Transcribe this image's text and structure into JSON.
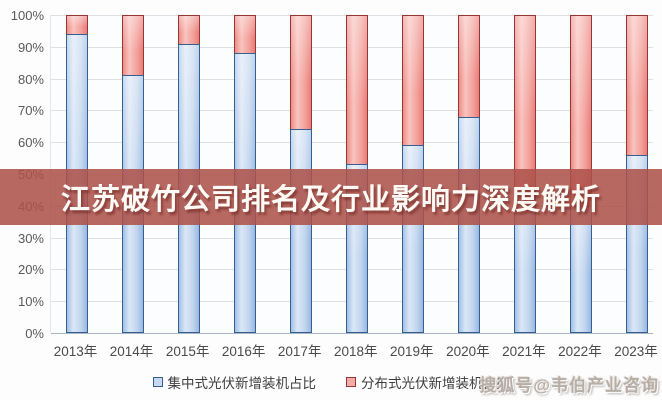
{
  "banner": {
    "title": "江苏破竹公司排名及行业影响力深度解析",
    "bg_color": "#ac524a",
    "text_color": "#fefaf5"
  },
  "watermark": {
    "text": "搜狐号@韦伯产业咨询"
  },
  "chart_data": {
    "type": "bar",
    "stacked": true,
    "unit": "%",
    "categories": [
      "2013年",
      "2014年",
      "2015年",
      "2016年",
      "2017年",
      "2018年",
      "2019年",
      "2020年",
      "2021年",
      "2022年",
      "2023年"
    ],
    "series": [
      {
        "name": "集中式光伏新增装机占比",
        "color": "#c6d9f1",
        "border": "#365f91",
        "values": [
          94,
          81,
          91,
          88,
          64,
          53,
          59,
          68,
          43,
          40,
          56
        ]
      },
      {
        "name": "分布式光伏新增装机占比",
        "color": "#f3aca7",
        "border": "#943634",
        "values": [
          6,
          19,
          9,
          12,
          36,
          47,
          41,
          32,
          57,
          60,
          44
        ]
      }
    ],
    "ylabel": "",
    "xlabel": "",
    "ylim": [
      0,
      100
    ],
    "ytick_step": 10,
    "ytick_labels": [
      "0%",
      "10%",
      "20%",
      "30%",
      "40%",
      "50%",
      "60%",
      "70%",
      "80%",
      "90%",
      "100%"
    ],
    "grid": true,
    "legend_position": "bottom"
  }
}
